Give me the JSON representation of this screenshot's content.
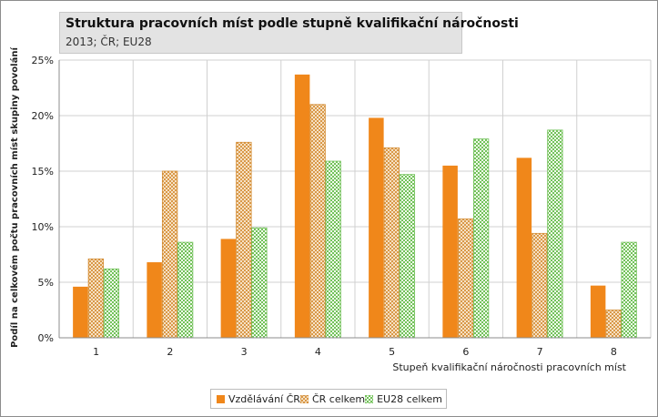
{
  "chart_data": {
    "type": "bar",
    "title": "Struktura pracovních míst podle stupně kvalifikační náročnosti",
    "subtitle": "2013; ČR; EU28",
    "xlabel": "Stupeň kvalifikační náročnosti pracovních míst",
    "ylabel": "Podíl na celkovém počtu pracovních míst skupiny povolání",
    "ylim": [
      0,
      25
    ],
    "yticks": [
      "0%",
      "5%",
      "10%",
      "15%",
      "20%",
      "25%"
    ],
    "categories": [
      "1",
      "2",
      "3",
      "4",
      "5",
      "6",
      "7",
      "8"
    ],
    "grid": true,
    "legend_position": "bottom",
    "series": [
      {
        "name": "Vzdělávání ČR",
        "color": "#f0871a",
        "pattern": "solid",
        "values": [
          4.6,
          6.8,
          8.9,
          23.7,
          19.8,
          15.5,
          16.2,
          4.7
        ]
      },
      {
        "name": "ČR celkem",
        "color": "#e0a04a",
        "pattern": "cross-hatch",
        "values": [
          7.1,
          15.0,
          17.6,
          21.0,
          17.1,
          10.7,
          9.4,
          2.5
        ]
      },
      {
        "name": "EU28 celkem",
        "color": "#72c15a",
        "pattern": "check",
        "values": [
          6.2,
          8.6,
          9.9,
          15.9,
          14.7,
          17.9,
          18.7,
          8.6
        ]
      }
    ]
  }
}
